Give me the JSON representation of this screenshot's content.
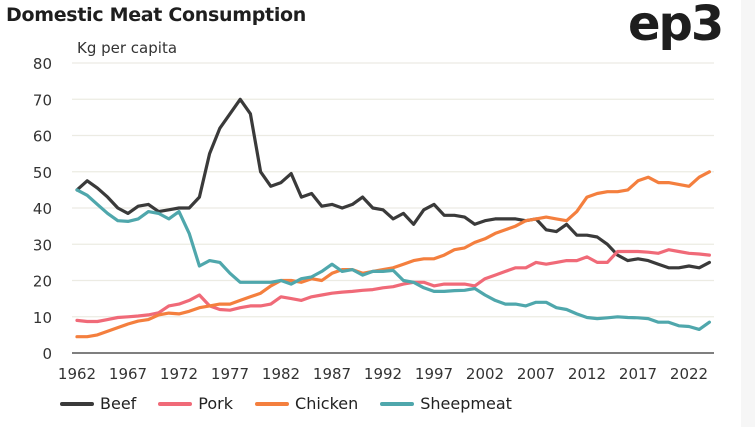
{
  "chart_data": {
    "type": "line",
    "title": "Domestic Meat Consumption",
    "ylabel": "Kg per capita",
    "xlabel": "",
    "ylim": [
      0,
      80
    ],
    "yticks": [
      0,
      10,
      20,
      30,
      40,
      50,
      60,
      70,
      80
    ],
    "xticks": [
      1962,
      1967,
      1972,
      1977,
      1982,
      1987,
      1992,
      1997,
      2002,
      2007,
      2012,
      2017,
      2022
    ],
    "x_start": 1962,
    "grid": "horizontal",
    "legend": "bottom",
    "series": [
      {
        "name": "Beef",
        "color": "#3a3a3a",
        "values": [
          45,
          47.5,
          45.5,
          43,
          40,
          38.5,
          40.5,
          41,
          39,
          39.5,
          40,
          40,
          43,
          55,
          62,
          66,
          70,
          66,
          50,
          46,
          47,
          49.5,
          43,
          44,
          40.5,
          41,
          40,
          41,
          43,
          40,
          39.5,
          37,
          38.5,
          35.5,
          39.5,
          41,
          38,
          38,
          37.5,
          35.5,
          36.5,
          37,
          37,
          37,
          36.5,
          37,
          34,
          33.5,
          35.5,
          32.5,
          32.5,
          32,
          30,
          27,
          25.5,
          26,
          25.5,
          24.5,
          23.5,
          23.5,
          24,
          23.5,
          25
        ]
      },
      {
        "name": "Pork",
        "color": "#f06a78",
        "values": [
          9,
          8.7,
          8.7,
          9.2,
          9.8,
          10,
          10.2,
          10.5,
          11.1,
          13,
          13.5,
          14.5,
          16,
          13,
          12,
          11.8,
          12.5,
          13,
          13,
          13.5,
          15.5,
          15,
          14.5,
          15.5,
          16,
          16.5,
          16.8,
          17,
          17.3,
          17.5,
          18,
          18.3,
          19,
          19.5,
          19.5,
          18.5,
          19,
          19,
          19,
          18.5,
          20.5,
          21.5,
          22.5,
          23.5,
          23.5,
          25,
          24.5,
          25,
          25.5,
          25.5,
          26.5,
          25,
          25,
          28,
          28,
          28,
          27.8,
          27.5,
          28.5,
          28,
          27.5,
          27.3,
          27
        ]
      },
      {
        "name": "Chicken",
        "color": "#f47f3e",
        "values": [
          4.5,
          4.5,
          5,
          6,
          7,
          8,
          8.8,
          9.2,
          10.5,
          11,
          10.8,
          11.5,
          12.5,
          13,
          13.5,
          13.5,
          14.5,
          15.5,
          16.5,
          18.5,
          20,
          20,
          19.5,
          20.5,
          20,
          22,
          23,
          23,
          22,
          22.5,
          23,
          23.5,
          24.5,
          25.5,
          26,
          26,
          27,
          28.5,
          29,
          30.5,
          31.5,
          33,
          34,
          35,
          36.5,
          37,
          37.5,
          37,
          36.5,
          39,
          43,
          44,
          44.5,
          44.5,
          45,
          47.5,
          48.5,
          47,
          47,
          46.5,
          46,
          48.5,
          50
        ]
      },
      {
        "name": "Sheepmeat",
        "color": "#4fa7ac",
        "values": [
          45,
          43.5,
          41,
          38.5,
          36.5,
          36.3,
          37,
          39,
          38.5,
          37,
          39,
          33,
          24,
          25.5,
          25,
          22,
          19.5,
          19.5,
          19.5,
          19.5,
          20,
          19,
          20.5,
          21,
          22.5,
          24.5,
          22.5,
          23,
          21.5,
          22.5,
          22.5,
          22.8,
          20,
          19.5,
          18,
          17,
          17,
          17.2,
          17.3,
          17.8,
          16,
          14.5,
          13.5,
          13.5,
          13,
          14,
          14,
          12.5,
          12,
          10.8,
          9.8,
          9.5,
          9.7,
          10,
          9.8,
          9.7,
          9.5,
          8.5,
          8.5,
          7.5,
          7.3,
          6.5,
          8.5
        ]
      }
    ]
  },
  "logo": "ep3"
}
